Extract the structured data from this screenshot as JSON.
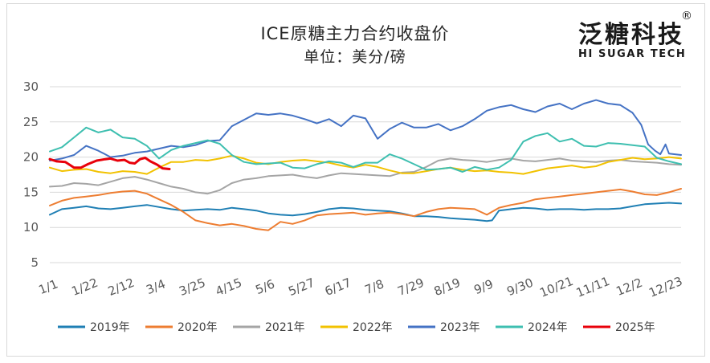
{
  "chart_data": {
    "type": "line",
    "title": "ICE原糖主力合约收盘价",
    "subtitle": "单位：美分/磅",
    "ylim": [
      5,
      30
    ],
    "yticks": [
      5,
      10,
      15,
      20,
      25,
      30
    ],
    "xlim": [
      1,
      365
    ],
    "xticks": [
      {
        "day": 1,
        "label": "1/1"
      },
      {
        "day": 22,
        "label": "1/22"
      },
      {
        "day": 43,
        "label": "2/12"
      },
      {
        "day": 63,
        "label": "3/4"
      },
      {
        "day": 84,
        "label": "3/25"
      },
      {
        "day": 105,
        "label": "4/15"
      },
      {
        "day": 126,
        "label": "5/6"
      },
      {
        "day": 147,
        "label": "5/27"
      },
      {
        "day": 168,
        "label": "6/17"
      },
      {
        "day": 189,
        "label": "7/8"
      },
      {
        "day": 210,
        "label": "7/29"
      },
      {
        "day": 231,
        "label": "8/19"
      },
      {
        "day": 252,
        "label": "9/9"
      },
      {
        "day": 273,
        "label": "9/30"
      },
      {
        "day": 294,
        "label": "10/21"
      },
      {
        "day": 315,
        "label": "11/11"
      },
      {
        "day": 336,
        "label": "12/2"
      },
      {
        "day": 357,
        "label": "12/23"
      }
    ],
    "grid": "horizontal",
    "legend_position": "bottom",
    "series": [
      {
        "name": "2019年",
        "color": "#1f7fb4",
        "x": [
          1,
          8,
          15,
          22,
          29,
          36,
          43,
          50,
          57,
          64,
          71,
          78,
          85,
          92,
          99,
          106,
          113,
          120,
          127,
          134,
          141,
          148,
          155,
          162,
          169,
          176,
          183,
          190,
          197,
          204,
          211,
          218,
          225,
          232,
          239,
          246,
          253,
          256,
          260,
          267,
          274,
          281,
          288,
          295,
          302,
          309,
          316,
          323,
          330,
          337,
          344,
          351,
          358,
          365
        ],
        "y": [
          11.8,
          12.6,
          12.8,
          13.0,
          12.7,
          12.6,
          12.8,
          13.0,
          13.2,
          12.9,
          12.6,
          12.4,
          12.5,
          12.6,
          12.5,
          12.8,
          12.6,
          12.4,
          12.0,
          11.8,
          11.7,
          11.9,
          12.2,
          12.6,
          12.8,
          12.7,
          12.5,
          12.4,
          12.3,
          12.0,
          11.6,
          11.6,
          11.5,
          11.3,
          11.2,
          11.1,
          10.9,
          11.0,
          12.4,
          12.6,
          12.8,
          12.7,
          12.5,
          12.6,
          12.6,
          12.5,
          12.6,
          12.6,
          12.7,
          13.0,
          13.3,
          13.4,
          13.5,
          13.4
        ]
      },
      {
        "name": "2020年",
        "color": "#ed7d31",
        "x": [
          1,
          8,
          15,
          22,
          29,
          36,
          43,
          50,
          57,
          64,
          71,
          78,
          85,
          92,
          99,
          106,
          113,
          120,
          127,
          134,
          141,
          148,
          155,
          162,
          169,
          176,
          183,
          190,
          197,
          204,
          211,
          218,
          225,
          232,
          239,
          246,
          253,
          260,
          267,
          274,
          281,
          288,
          295,
          302,
          309,
          316,
          323,
          330,
          337,
          344,
          351,
          358,
          365
        ],
        "y": [
          13.1,
          13.8,
          14.2,
          14.4,
          14.6,
          14.9,
          15.1,
          15.2,
          14.8,
          14.0,
          13.2,
          12.2,
          11.0,
          10.6,
          10.3,
          10.5,
          10.2,
          9.8,
          9.6,
          10.8,
          10.5,
          11.0,
          11.7,
          11.9,
          12.0,
          12.1,
          11.8,
          12.0,
          12.1,
          11.9,
          11.6,
          12.2,
          12.6,
          12.8,
          12.7,
          12.6,
          11.8,
          12.8,
          13.2,
          13.5,
          14.0,
          14.2,
          14.4,
          14.6,
          14.8,
          15.0,
          15.2,
          15.4,
          15.1,
          14.7,
          14.6,
          15.0,
          15.5
        ]
      },
      {
        "name": "2021年",
        "color": "#a5a5a5",
        "x": [
          1,
          8,
          15,
          22,
          29,
          36,
          43,
          50,
          57,
          64,
          71,
          78,
          85,
          92,
          99,
          106,
          113,
          120,
          127,
          134,
          141,
          148,
          155,
          162,
          169,
          176,
          183,
          190,
          197,
          204,
          211,
          218,
          225,
          232,
          239,
          246,
          253,
          260,
          267,
          274,
          281,
          288,
          295,
          302,
          309,
          316,
          323,
          330,
          337,
          344,
          351,
          358,
          365
        ],
        "y": [
          15.8,
          15.9,
          16.3,
          16.2,
          16.0,
          16.5,
          17.0,
          17.2,
          16.8,
          16.3,
          15.8,
          15.5,
          15.0,
          14.8,
          15.3,
          16.3,
          16.8,
          17.0,
          17.3,
          17.4,
          17.5,
          17.2,
          17.0,
          17.4,
          17.7,
          17.6,
          17.5,
          17.4,
          17.3,
          17.8,
          17.9,
          18.6,
          19.5,
          19.8,
          19.6,
          19.5,
          19.3,
          19.6,
          19.8,
          19.5,
          19.4,
          19.6,
          19.8,
          19.5,
          19.4,
          19.3,
          19.5,
          19.6,
          19.4,
          19.3,
          19.2,
          19.0,
          18.9
        ]
      },
      {
        "name": "2022年",
        "color": "#f2c200",
        "x": [
          1,
          8,
          15,
          22,
          29,
          36,
          43,
          50,
          57,
          64,
          71,
          78,
          85,
          92,
          99,
          106,
          113,
          120,
          127,
          134,
          141,
          148,
          155,
          162,
          169,
          176,
          183,
          190,
          197,
          204,
          211,
          218,
          225,
          232,
          239,
          246,
          253,
          260,
          267,
          274,
          281,
          288,
          295,
          302,
          309,
          316,
          323,
          330,
          337,
          344,
          351,
          358,
          365
        ],
        "y": [
          18.5,
          18.0,
          18.2,
          18.3,
          17.9,
          17.7,
          18.0,
          17.9,
          17.6,
          18.5,
          19.3,
          19.3,
          19.6,
          19.5,
          19.8,
          20.2,
          19.8,
          19.2,
          19.0,
          19.3,
          19.5,
          19.6,
          19.4,
          19.2,
          18.8,
          18.5,
          18.9,
          18.6,
          18.1,
          17.7,
          17.7,
          18.0,
          18.3,
          18.5,
          18.2,
          18.0,
          18.1,
          17.9,
          17.8,
          17.6,
          18.0,
          18.4,
          18.6,
          18.8,
          18.5,
          18.7,
          19.3,
          19.6,
          19.9,
          19.7,
          19.8,
          20.0,
          19.8
        ]
      },
      {
        "name": "2023年",
        "color": "#4472c4",
        "x": [
          1,
          8,
          15,
          22,
          29,
          36,
          43,
          50,
          57,
          64,
          71,
          78,
          85,
          92,
          99,
          106,
          113,
          120,
          127,
          134,
          141,
          148,
          155,
          162,
          169,
          176,
          183,
          190,
          197,
          204,
          211,
          218,
          225,
          232,
          239,
          246,
          253,
          260,
          267,
          274,
          281,
          288,
          295,
          302,
          309,
          316,
          323,
          330,
          337,
          342,
          346,
          350,
          353,
          356,
          358,
          365
        ],
        "y": [
          19.5,
          19.8,
          20.3,
          21.6,
          20.9,
          20.0,
          20.2,
          20.6,
          20.8,
          21.2,
          21.6,
          21.4,
          21.7,
          22.3,
          22.4,
          24.4,
          25.3,
          26.2,
          26.0,
          26.2,
          25.9,
          25.4,
          24.8,
          25.4,
          24.4,
          25.9,
          25.5,
          22.6,
          24.0,
          24.9,
          24.2,
          24.2,
          24.7,
          23.8,
          24.4,
          25.4,
          26.6,
          27.1,
          27.4,
          26.8,
          26.4,
          27.2,
          27.6,
          26.8,
          27.6,
          28.1,
          27.6,
          27.4,
          26.3,
          24.6,
          21.8,
          20.9,
          20.4,
          21.8,
          20.5,
          20.3
        ]
      },
      {
        "name": "2024年",
        "color": "#3ebfb0",
        "x": [
          1,
          8,
          15,
          22,
          29,
          36,
          43,
          50,
          57,
          64,
          71,
          78,
          85,
          92,
          99,
          106,
          113,
          120,
          127,
          134,
          141,
          148,
          155,
          162,
          169,
          176,
          183,
          190,
          197,
          204,
          211,
          218,
          225,
          232,
          239,
          246,
          253,
          260,
          267,
          274,
          281,
          288,
          295,
          302,
          309,
          316,
          323,
          330,
          337,
          344,
          351,
          358,
          365
        ],
        "y": [
          20.8,
          21.4,
          22.8,
          24.2,
          23.5,
          23.9,
          22.8,
          22.6,
          21.6,
          19.8,
          21.0,
          21.6,
          22.0,
          22.4,
          21.9,
          20.3,
          19.3,
          19.0,
          19.1,
          19.2,
          18.5,
          18.4,
          19.0,
          19.4,
          19.2,
          18.6,
          19.2,
          19.2,
          20.4,
          19.8,
          19.0,
          18.2,
          18.3,
          18.5,
          17.9,
          18.6,
          18.2,
          18.5,
          19.6,
          22.2,
          23.0,
          23.4,
          22.2,
          22.6,
          21.6,
          21.5,
          22.0,
          21.9,
          21.7,
          21.5,
          19.9,
          19.4,
          19.0
        ]
      },
      {
        "name": "2025年",
        "color": "#e8000a",
        "x": [
          1,
          5,
          10,
          15,
          19,
          23,
          28,
          33,
          36,
          40,
          44,
          47,
          50,
          53,
          56,
          59,
          63,
          66,
          70
        ],
        "y": [
          19.7,
          19.4,
          19.3,
          18.5,
          18.5,
          19.0,
          19.5,
          19.7,
          19.8,
          19.5,
          19.6,
          19.2,
          19.1,
          19.7,
          19.9,
          19.4,
          18.9,
          18.4,
          18.3
        ]
      }
    ]
  },
  "branding": {
    "logo_cn": "泛糖科技",
    "logo_en": "HI SUGAR TECH",
    "logo_mark": "®"
  }
}
